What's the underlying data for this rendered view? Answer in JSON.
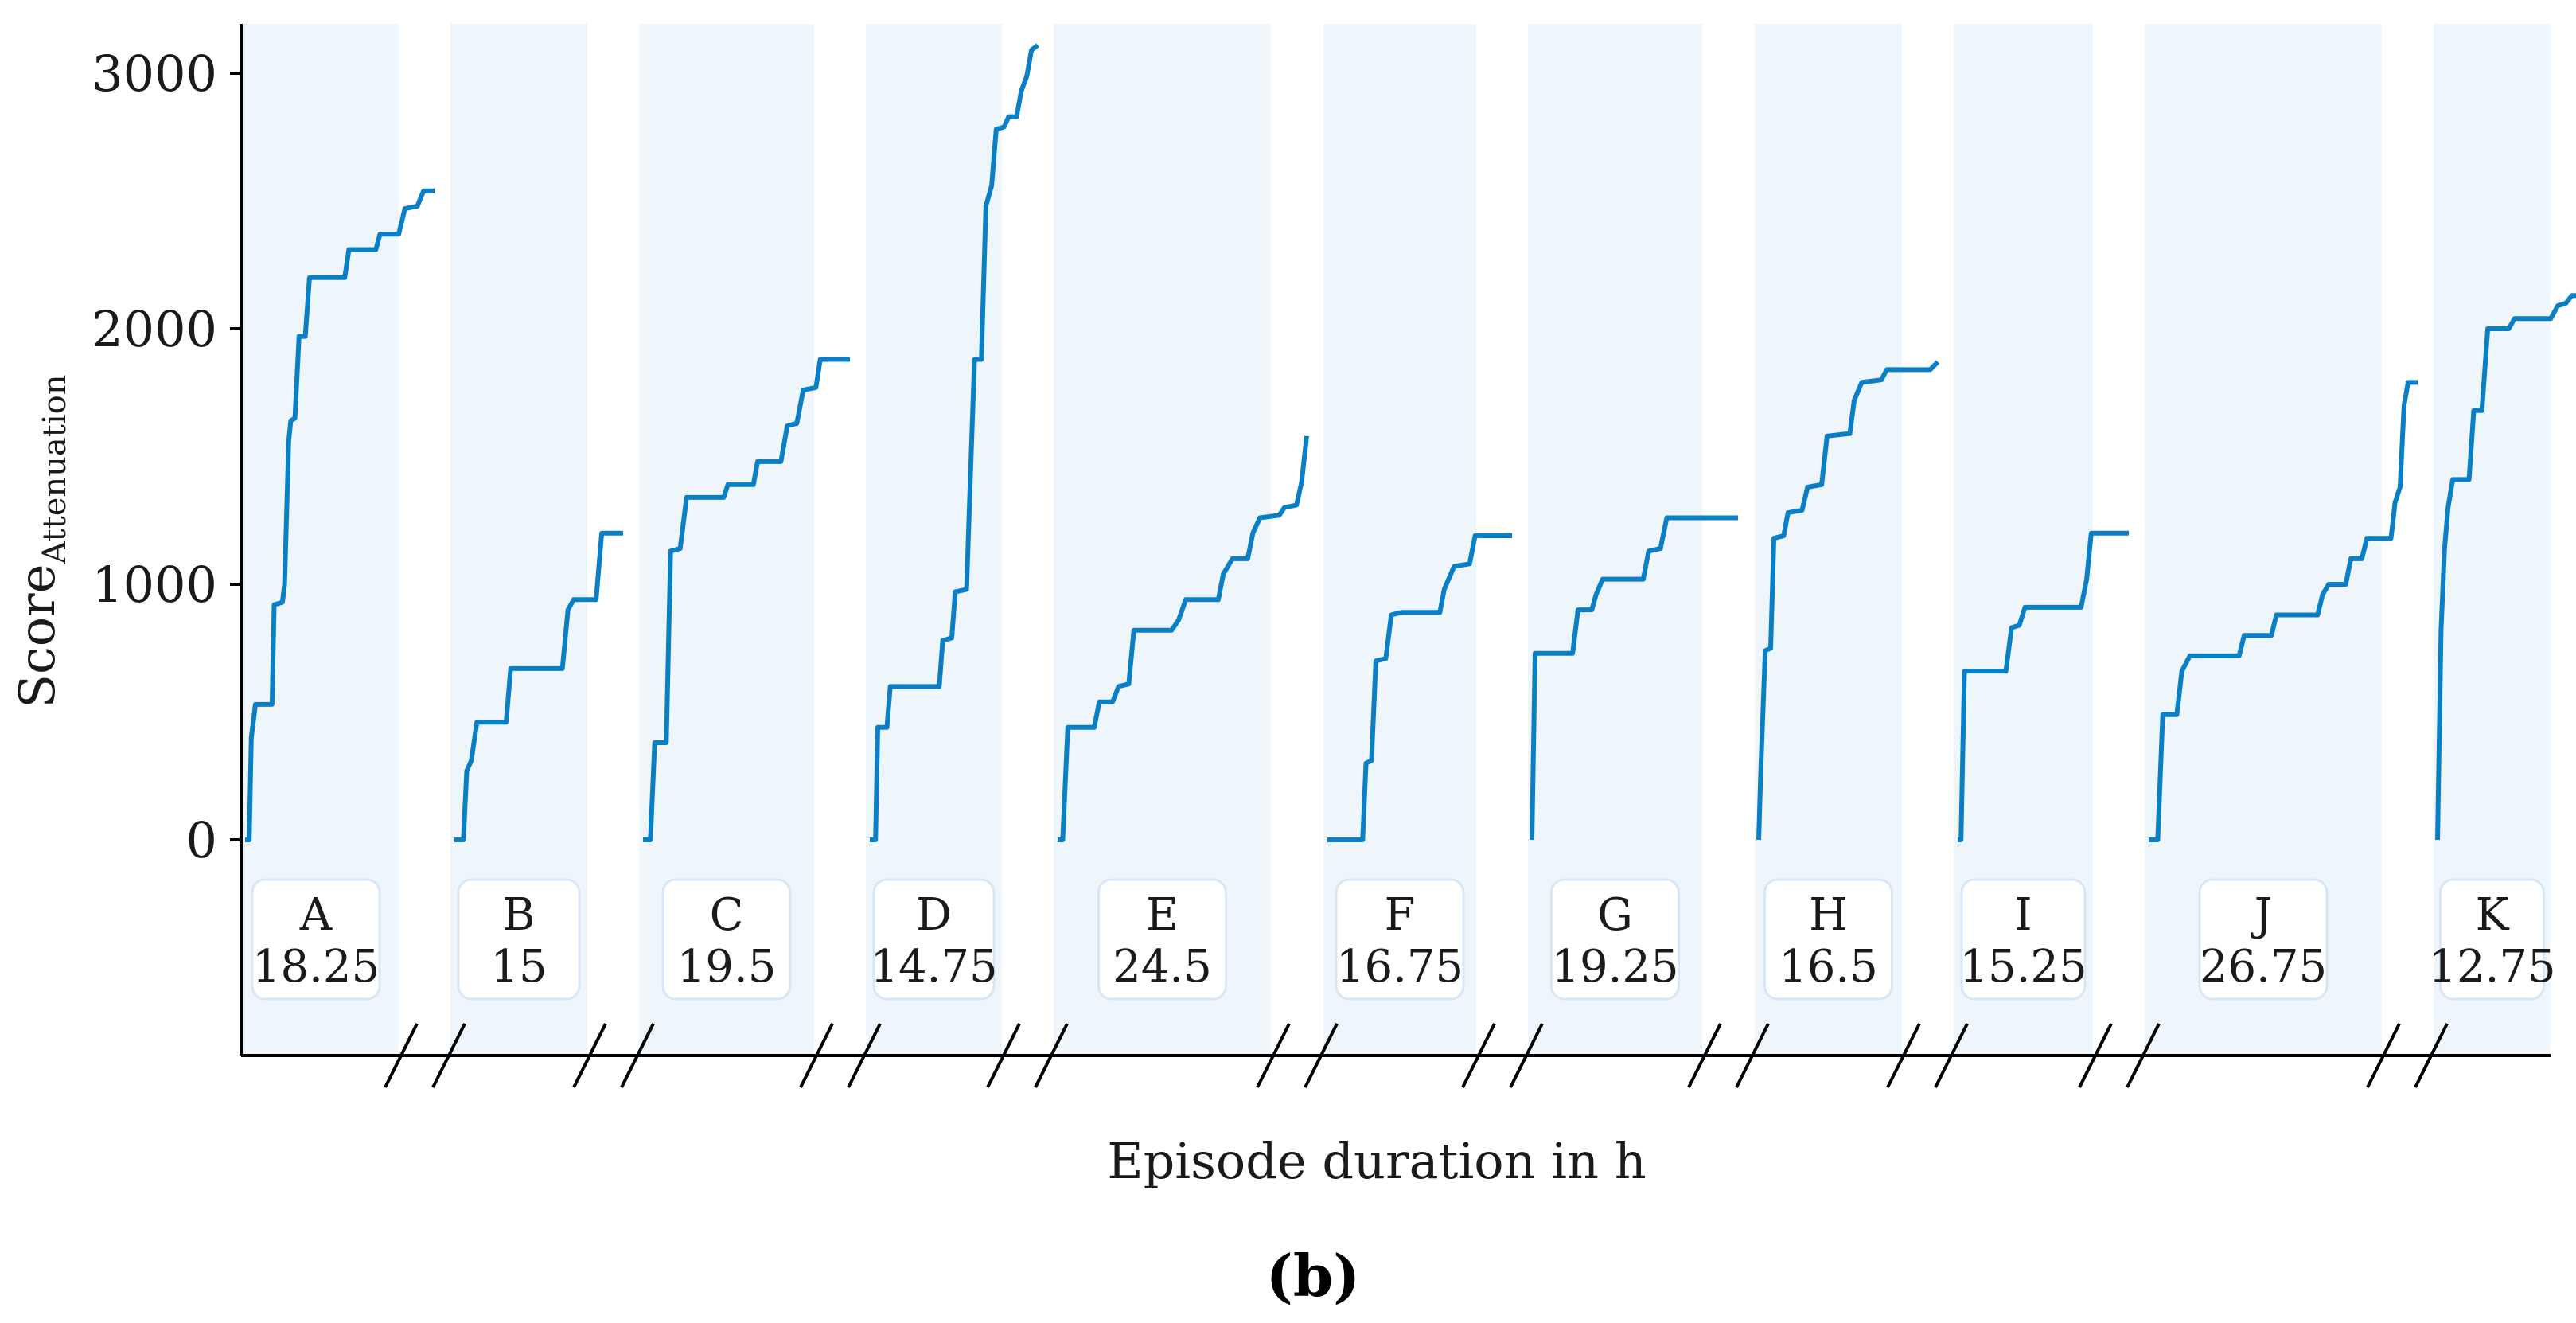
{
  "chart_data": {
    "type": "line",
    "xlabel": "Episode duration in h",
    "ylabel_main": "Score",
    "ylabel_sub": "Attenuation",
    "yticks": [
      0,
      1000,
      2000,
      3000
    ],
    "ytick_labels": [
      "0",
      "1000",
      "2000",
      "3000"
    ],
    "ylim": [
      -850,
      3200
    ],
    "panel_label": "(b)",
    "series_color": "#0a7fc6",
    "band_color": "#eef6fb",
    "episodes": [
      {
        "name": "A",
        "duration": 18.25,
        "duration_label": "18.25",
        "points": [
          [
            0,
            0
          ],
          [
            0.4,
            0
          ],
          [
            0.6,
            400
          ],
          [
            1.0,
            530
          ],
          [
            2.6,
            530
          ],
          [
            2.8,
            920
          ],
          [
            3.6,
            930
          ],
          [
            3.8,
            1000
          ],
          [
            4.2,
            1560
          ],
          [
            4.4,
            1640
          ],
          [
            4.8,
            1650
          ],
          [
            5.2,
            1970
          ],
          [
            5.8,
            1970
          ],
          [
            6.2,
            2200
          ],
          [
            9.6,
            2200
          ],
          [
            10.0,
            2310
          ],
          [
            12.6,
            2310
          ],
          [
            13.0,
            2370
          ],
          [
            14.8,
            2370
          ],
          [
            15.4,
            2470
          ],
          [
            16.6,
            2480
          ],
          [
            17.2,
            2540
          ],
          [
            18.25,
            2540
          ]
        ]
      },
      {
        "name": "B",
        "duration": 15,
        "duration_label": "15",
        "points": [
          [
            0,
            0
          ],
          [
            0.8,
            0
          ],
          [
            1.1,
            270
          ],
          [
            1.5,
            310
          ],
          [
            2.0,
            460
          ],
          [
            4.6,
            460
          ],
          [
            5.0,
            670
          ],
          [
            9.6,
            670
          ],
          [
            10.1,
            900
          ],
          [
            10.6,
            940
          ],
          [
            12.6,
            940
          ],
          [
            13.1,
            1200
          ],
          [
            15,
            1200
          ]
        ]
      },
      {
        "name": "C",
        "duration": 19.5,
        "duration_label": "19.5",
        "points": [
          [
            0,
            0
          ],
          [
            0.7,
            0
          ],
          [
            1.1,
            380
          ],
          [
            2.2,
            380
          ],
          [
            2.6,
            1130
          ],
          [
            3.5,
            1140
          ],
          [
            4.1,
            1340
          ],
          [
            7.6,
            1340
          ],
          [
            8.0,
            1390
          ],
          [
            10.4,
            1390
          ],
          [
            10.8,
            1480
          ],
          [
            13.0,
            1480
          ],
          [
            13.6,
            1620
          ],
          [
            14.5,
            1630
          ],
          [
            15.1,
            1760
          ],
          [
            16.3,
            1770
          ],
          [
            16.7,
            1880
          ],
          [
            19.5,
            1880
          ]
        ]
      },
      {
        "name": "D",
        "duration": 14.75,
        "duration_label": "14.75",
        "points": [
          [
            0,
            0
          ],
          [
            0.5,
            0
          ],
          [
            0.7,
            440
          ],
          [
            1.5,
            440
          ],
          [
            1.8,
            600
          ],
          [
            6.1,
            600
          ],
          [
            6.4,
            780
          ],
          [
            7.2,
            790
          ],
          [
            7.5,
            970
          ],
          [
            8.5,
            980
          ],
          [
            8.9,
            1500
          ],
          [
            9.2,
            1880
          ],
          [
            9.8,
            1880
          ],
          [
            10.2,
            2480
          ],
          [
            10.7,
            2560
          ],
          [
            11.1,
            2780
          ],
          [
            11.8,
            2790
          ],
          [
            12.2,
            2830
          ],
          [
            12.9,
            2830
          ],
          [
            13.3,
            2930
          ],
          [
            13.8,
            2990
          ],
          [
            14.2,
            3090
          ],
          [
            14.75,
            3110
          ]
        ]
      },
      {
        "name": "E",
        "duration": 24.5,
        "duration_label": "24.5",
        "points": [
          [
            0,
            0
          ],
          [
            0.5,
            0
          ],
          [
            1.0,
            440
          ],
          [
            3.6,
            440
          ],
          [
            4.1,
            540
          ],
          [
            5.4,
            540
          ],
          [
            6.0,
            600
          ],
          [
            7.0,
            610
          ],
          [
            7.5,
            820
          ],
          [
            11.2,
            820
          ],
          [
            11.9,
            860
          ],
          [
            12.6,
            940
          ],
          [
            15.8,
            940
          ],
          [
            16.3,
            1040
          ],
          [
            17.2,
            1100
          ],
          [
            18.7,
            1100
          ],
          [
            19.2,
            1200
          ],
          [
            19.9,
            1260
          ],
          [
            21.8,
            1270
          ],
          [
            22.3,
            1300
          ],
          [
            23.5,
            1310
          ],
          [
            24.0,
            1400
          ],
          [
            24.5,
            1580
          ]
        ]
      },
      {
        "name": "F",
        "duration": 16.75,
        "duration_label": "16.75",
        "points": [
          [
            0,
            0
          ],
          [
            3.2,
            0
          ],
          [
            3.5,
            300
          ],
          [
            4.0,
            310
          ],
          [
            4.4,
            700
          ],
          [
            5.3,
            710
          ],
          [
            5.8,
            880
          ],
          [
            6.7,
            890
          ],
          [
            7.0,
            890
          ],
          [
            10.2,
            890
          ],
          [
            10.6,
            980
          ],
          [
            11.5,
            1070
          ],
          [
            12.9,
            1080
          ],
          [
            13.4,
            1190
          ],
          [
            16.75,
            1190
          ]
        ]
      },
      {
        "name": "G",
        "duration": 19.25,
        "duration_label": "19.25",
        "points": [
          [
            0,
            0
          ],
          [
            0.3,
            730
          ],
          [
            3.8,
            730
          ],
          [
            4.3,
            900
          ],
          [
            5.6,
            900
          ],
          [
            6.0,
            960
          ],
          [
            6.6,
            1020
          ],
          [
            10.4,
            1020
          ],
          [
            10.9,
            1130
          ],
          [
            12.0,
            1140
          ],
          [
            12.6,
            1260
          ],
          [
            19.25,
            1260
          ]
        ]
      },
      {
        "name": "H",
        "duration": 16.5,
        "duration_label": "16.5",
        "points": [
          [
            0,
            0
          ],
          [
            0.2,
            280
          ],
          [
            0.6,
            740
          ],
          [
            1.1,
            750
          ],
          [
            1.4,
            1180
          ],
          [
            2.3,
            1190
          ],
          [
            2.7,
            1280
          ],
          [
            4.0,
            1290
          ],
          [
            4.5,
            1380
          ],
          [
            5.8,
            1390
          ],
          [
            6.3,
            1580
          ],
          [
            8.4,
            1590
          ],
          [
            8.8,
            1720
          ],
          [
            9.5,
            1790
          ],
          [
            11.3,
            1800
          ],
          [
            11.8,
            1840
          ],
          [
            15.8,
            1840
          ],
          [
            16.5,
            1870
          ]
        ]
      },
      {
        "name": "I",
        "duration": 15.25,
        "duration_label": "15.25",
        "points": [
          [
            0,
            0
          ],
          [
            0.3,
            0
          ],
          [
            0.6,
            660
          ],
          [
            4.3,
            660
          ],
          [
            4.8,
            830
          ],
          [
            5.5,
            840
          ],
          [
            6.0,
            910
          ],
          [
            11.0,
            910
          ],
          [
            11.5,
            1020
          ],
          [
            11.9,
            1200
          ],
          [
            15.25,
            1200
          ]
        ]
      },
      {
        "name": "J",
        "duration": 26.75,
        "duration_label": "26.75",
        "points": [
          [
            0,
            0
          ],
          [
            0.9,
            0
          ],
          [
            1.4,
            490
          ],
          [
            2.8,
            490
          ],
          [
            3.3,
            660
          ],
          [
            4.1,
            720
          ],
          [
            9.0,
            720
          ],
          [
            9.5,
            800
          ],
          [
            12.2,
            800
          ],
          [
            12.7,
            880
          ],
          [
            16.8,
            880
          ],
          [
            17.3,
            960
          ],
          [
            17.9,
            1000
          ],
          [
            19.6,
            1000
          ],
          [
            20.1,
            1100
          ],
          [
            21.2,
            1100
          ],
          [
            21.7,
            1180
          ],
          [
            24.1,
            1180
          ],
          [
            24.5,
            1320
          ],
          [
            25.0,
            1380
          ],
          [
            25.4,
            1700
          ],
          [
            25.8,
            1790
          ],
          [
            26.75,
            1790
          ]
        ]
      },
      {
        "name": "K",
        "duration": 12.75,
        "duration_label": "12.75",
        "points": [
          [
            0,
            0
          ],
          [
            0.3,
            820
          ],
          [
            0.6,
            1140
          ],
          [
            0.9,
            1300
          ],
          [
            1.3,
            1410
          ],
          [
            2.7,
            1410
          ],
          [
            3.1,
            1680
          ],
          [
            3.8,
            1680
          ],
          [
            4.3,
            2000
          ],
          [
            6.1,
            2000
          ],
          [
            6.6,
            2040
          ],
          [
            9.7,
            2040
          ],
          [
            10.3,
            2090
          ],
          [
            11.0,
            2100
          ],
          [
            11.5,
            2130
          ],
          [
            12.75,
            2130
          ]
        ]
      }
    ]
  }
}
